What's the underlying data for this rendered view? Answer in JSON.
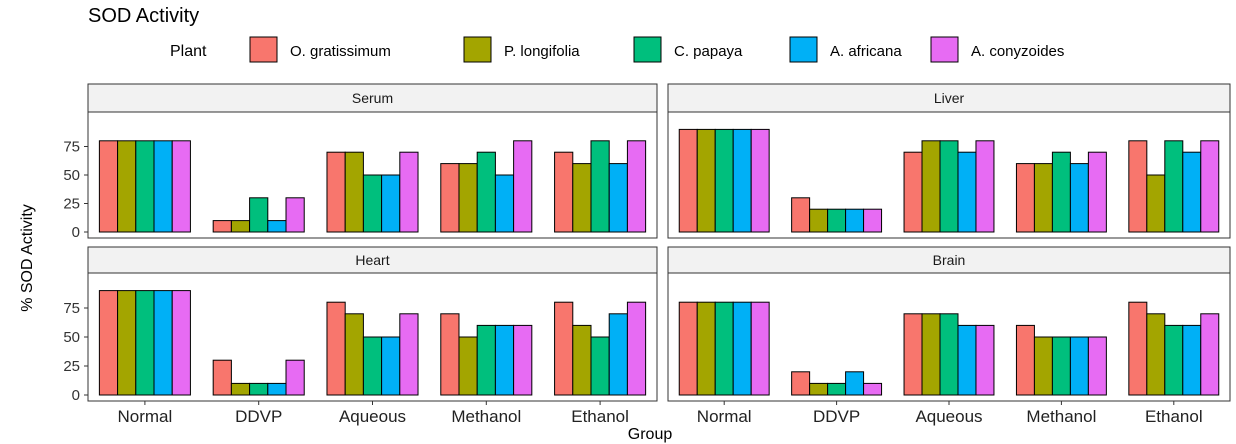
{
  "chart_data": {
    "type": "bar",
    "title": "SOD Activity",
    "xlabel": "Group",
    "ylabel": "% SOD Activity",
    "ylim": [
      0,
      100
    ],
    "yticks": [
      0,
      25,
      50,
      75
    ],
    "ytick_labels": [
      "0",
      "25",
      "50",
      "75"
    ],
    "legend_title": "Plant",
    "legend_position": "top",
    "grid": false,
    "categories": [
      "Normal",
      "DDVP",
      "Aqueous",
      "Methanol",
      "Ethanol"
    ],
    "series": [
      {
        "name": "O. gratissimum",
        "color": "#F8766D"
      },
      {
        "name": "P. longifolia",
        "color": "#A3A500"
      },
      {
        "name": "C. papaya",
        "color": "#00BF7D"
      },
      {
        "name": "A. africana",
        "color": "#00B0F6"
      },
      {
        "name": "A. conyzoides",
        "color": "#E76BF3"
      }
    ],
    "facets": [
      {
        "name": "Serum",
        "values": [
          [
            80,
            80,
            80,
            80,
            80
          ],
          [
            10,
            10,
            30,
            10,
            30
          ],
          [
            70,
            70,
            50,
            50,
            70
          ],
          [
            60,
            60,
            70,
            50,
            80
          ],
          [
            70,
            60,
            80,
            60,
            80
          ]
        ]
      },
      {
        "name": "Liver",
        "values": [
          [
            90,
            90,
            90,
            90,
            90
          ],
          [
            30,
            20,
            20,
            20,
            20
          ],
          [
            70,
            80,
            80,
            70,
            80
          ],
          [
            60,
            60,
            70,
            60,
            70
          ],
          [
            80,
            50,
            80,
            70,
            80
          ]
        ]
      },
      {
        "name": "Heart",
        "values": [
          [
            90,
            90,
            90,
            90,
            90
          ],
          [
            30,
            10,
            10,
            10,
            30
          ],
          [
            80,
            70,
            50,
            50,
            70
          ],
          [
            70,
            50,
            60,
            60,
            60
          ],
          [
            80,
            60,
            50,
            70,
            80
          ]
        ]
      },
      {
        "name": "Brain",
        "values": [
          [
            80,
            80,
            80,
            80,
            80
          ],
          [
            20,
            10,
            10,
            20,
            10
          ],
          [
            70,
            70,
            70,
            60,
            60
          ],
          [
            60,
            50,
            50,
            50,
            50
          ],
          [
            80,
            70,
            60,
            60,
            70
          ]
        ]
      }
    ]
  }
}
